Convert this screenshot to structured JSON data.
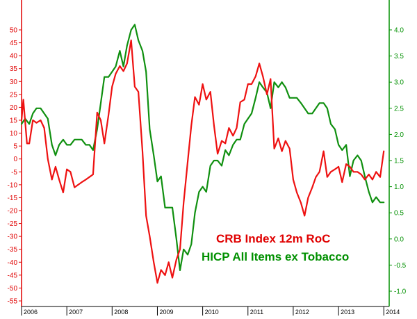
{
  "chart_data": {
    "type": "line",
    "title": "",
    "xlabel": "",
    "ylabel": "",
    "x_tick_labels": [
      "2006",
      "2007",
      "2008",
      "2009",
      "2010",
      "2011",
      "2012",
      "2013",
      "2014"
    ],
    "x_range": [
      2006.0,
      2014.15
    ],
    "y_left": {
      "ylim": [
        -55,
        50
      ],
      "ticks": [
        50,
        45,
        40,
        35,
        30,
        25,
        20,
        15,
        10,
        5,
        0,
        -5,
        -10,
        -15,
        -20,
        -25,
        -30,
        -35,
        -40,
        -45,
        -50,
        -55
      ],
      "color": "#e00000"
    },
    "y_right": {
      "ylim": [
        -1.0,
        4.0
      ],
      "ticks": [
        "4.0",
        "3.5",
        "3.0",
        "2.5",
        "2.0",
        "1.5",
        "1.0",
        "0.5",
        "0.0",
        "-0.5",
        "-1.0"
      ],
      "color": "#009000"
    },
    "grid": false,
    "legend_position": "bottom-right",
    "series": [
      {
        "name": "CRB Index 12m RoC",
        "axis": "left",
        "color": "#ee1111",
        "points": [
          [
            2006.0,
            15
          ],
          [
            2006.04,
            23
          ],
          [
            2006.12,
            6
          ],
          [
            2006.17,
            6
          ],
          [
            2006.25,
            15
          ],
          [
            2006.33,
            14
          ],
          [
            2006.42,
            15
          ],
          [
            2006.5,
            12
          ],
          [
            2006.58,
            0
          ],
          [
            2006.67,
            -8
          ],
          [
            2006.75,
            -3
          ],
          [
            2006.83,
            -8
          ],
          [
            2006.92,
            -13
          ],
          [
            2007.0,
            -4
          ],
          [
            2007.08,
            -5
          ],
          [
            2007.17,
            -11
          ],
          [
            2007.25,
            -10
          ],
          [
            2007.33,
            -9
          ],
          [
            2007.42,
            -8
          ],
          [
            2007.5,
            -7
          ],
          [
            2007.58,
            -6
          ],
          [
            2007.67,
            18
          ],
          [
            2007.75,
            15
          ],
          [
            2007.83,
            6
          ],
          [
            2007.92,
            17
          ],
          [
            2008.0,
            28
          ],
          [
            2008.08,
            33
          ],
          [
            2008.17,
            36
          ],
          [
            2008.25,
            34
          ],
          [
            2008.33,
            37
          ],
          [
            2008.42,
            46
          ],
          [
            2008.5,
            28
          ],
          [
            2008.58,
            26
          ],
          [
            2008.67,
            3
          ],
          [
            2008.75,
            -22
          ],
          [
            2008.83,
            -30
          ],
          [
            2008.92,
            -40
          ],
          [
            2009.0,
            -48
          ],
          [
            2009.08,
            -43
          ],
          [
            2009.17,
            -45
          ],
          [
            2009.25,
            -40
          ],
          [
            2009.33,
            -46
          ],
          [
            2009.42,
            -39
          ],
          [
            2009.5,
            -35
          ],
          [
            2009.58,
            -17
          ],
          [
            2009.67,
            -1
          ],
          [
            2009.75,
            13
          ],
          [
            2009.83,
            24
          ],
          [
            2009.92,
            21
          ],
          [
            2010.0,
            29
          ],
          [
            2010.08,
            23
          ],
          [
            2010.17,
            26
          ],
          [
            2010.25,
            13
          ],
          [
            2010.33,
            2
          ],
          [
            2010.42,
            7
          ],
          [
            2010.5,
            6
          ],
          [
            2010.58,
            12
          ],
          [
            2010.67,
            9
          ],
          [
            2010.75,
            12
          ],
          [
            2010.83,
            22
          ],
          [
            2010.92,
            23
          ],
          [
            2011.0,
            29
          ],
          [
            2011.08,
            29
          ],
          [
            2011.17,
            32
          ],
          [
            2011.25,
            37
          ],
          [
            2011.33,
            32
          ],
          [
            2011.42,
            25
          ],
          [
            2011.5,
            31
          ],
          [
            2011.58,
            4
          ],
          [
            2011.67,
            8
          ],
          [
            2011.75,
            3
          ],
          [
            2011.83,
            7
          ],
          [
            2011.92,
            4
          ],
          [
            2012.0,
            -8
          ],
          [
            2012.08,
            -13
          ],
          [
            2012.17,
            -17
          ],
          [
            2012.25,
            -22
          ],
          [
            2012.33,
            -15
          ],
          [
            2012.42,
            -11
          ],
          [
            2012.5,
            -7
          ],
          [
            2012.58,
            -5
          ],
          [
            2012.67,
            3
          ],
          [
            2012.75,
            -7
          ],
          [
            2012.83,
            -5
          ],
          [
            2012.92,
            -4
          ],
          [
            2013.0,
            -3
          ],
          [
            2013.08,
            -9
          ],
          [
            2013.17,
            -2
          ],
          [
            2013.25,
            -3
          ],
          [
            2013.33,
            -5
          ],
          [
            2013.42,
            -5
          ],
          [
            2013.5,
            -6
          ],
          [
            2013.58,
            -8
          ],
          [
            2013.67,
            -6
          ],
          [
            2013.75,
            -8
          ],
          [
            2013.83,
            -5
          ],
          [
            2013.92,
            -7
          ],
          [
            2014.0,
            3
          ]
        ]
      },
      {
        "name": "HICP All Items ex Tobacco",
        "axis": "right",
        "color": "#109010",
        "points": [
          [
            2006.0,
            2.2
          ],
          [
            2006.08,
            2.3
          ],
          [
            2006.17,
            2.2
          ],
          [
            2006.25,
            2.4
          ],
          [
            2006.33,
            2.5
          ],
          [
            2006.42,
            2.5
          ],
          [
            2006.5,
            2.4
          ],
          [
            2006.58,
            2.3
          ],
          [
            2006.67,
            1.8
          ],
          [
            2006.75,
            1.6
          ],
          [
            2006.83,
            1.8
          ],
          [
            2006.92,
            1.9
          ],
          [
            2007.0,
            1.8
          ],
          [
            2007.08,
            1.8
          ],
          [
            2007.17,
            1.9
          ],
          [
            2007.25,
            1.9
          ],
          [
            2007.33,
            1.9
          ],
          [
            2007.42,
            1.8
          ],
          [
            2007.5,
            1.8
          ],
          [
            2007.58,
            1.7
          ],
          [
            2007.67,
            2.1
          ],
          [
            2007.75,
            2.6
          ],
          [
            2007.83,
            3.1
          ],
          [
            2007.92,
            3.1
          ],
          [
            2008.0,
            3.2
          ],
          [
            2008.08,
            3.3
          ],
          [
            2008.17,
            3.6
          ],
          [
            2008.25,
            3.3
          ],
          [
            2008.33,
            3.7
          ],
          [
            2008.42,
            4.0
          ],
          [
            2008.5,
            4.1
          ],
          [
            2008.58,
            3.8
          ],
          [
            2008.67,
            3.6
          ],
          [
            2008.75,
            3.2
          ],
          [
            2008.83,
            2.1
          ],
          [
            2008.92,
            1.6
          ],
          [
            2009.0,
            1.1
          ],
          [
            2009.08,
            1.2
          ],
          [
            2009.17,
            0.6
          ],
          [
            2009.25,
            0.6
          ],
          [
            2009.33,
            0.6
          ],
          [
            2009.42,
            0.0
          ],
          [
            2009.5,
            -0.6
          ],
          [
            2009.58,
            -0.2
          ],
          [
            2009.67,
            -0.3
          ],
          [
            2009.75,
            -0.1
          ],
          [
            2009.83,
            0.5
          ],
          [
            2009.92,
            0.9
          ],
          [
            2010.0,
            1.0
          ],
          [
            2010.08,
            0.9
          ],
          [
            2010.17,
            1.4
          ],
          [
            2010.25,
            1.5
          ],
          [
            2010.33,
            1.5
          ],
          [
            2010.42,
            1.4
          ],
          [
            2010.5,
            1.7
          ],
          [
            2010.58,
            1.6
          ],
          [
            2010.67,
            1.8
          ],
          [
            2010.75,
            1.9
          ],
          [
            2010.83,
            1.9
          ],
          [
            2010.92,
            2.2
          ],
          [
            2011.0,
            2.3
          ],
          [
            2011.08,
            2.4
          ],
          [
            2011.17,
            2.7
          ],
          [
            2011.25,
            3.0
          ],
          [
            2011.33,
            2.9
          ],
          [
            2011.42,
            2.8
          ],
          [
            2011.5,
            2.5
          ],
          [
            2011.58,
            3.0
          ],
          [
            2011.67,
            2.9
          ],
          [
            2011.75,
            3.0
          ],
          [
            2011.83,
            2.9
          ],
          [
            2011.92,
            2.7
          ],
          [
            2012.0,
            2.7
          ],
          [
            2012.08,
            2.7
          ],
          [
            2012.17,
            2.6
          ],
          [
            2012.25,
            2.5
          ],
          [
            2012.33,
            2.4
          ],
          [
            2012.42,
            2.4
          ],
          [
            2012.5,
            2.5
          ],
          [
            2012.58,
            2.6
          ],
          [
            2012.67,
            2.6
          ],
          [
            2012.75,
            2.5
          ],
          [
            2012.83,
            2.2
          ],
          [
            2012.92,
            2.1
          ],
          [
            2013.0,
            1.8
          ],
          [
            2013.08,
            1.7
          ],
          [
            2013.17,
            1.8
          ],
          [
            2013.25,
            1.2
          ],
          [
            2013.33,
            1.5
          ],
          [
            2013.42,
            1.6
          ],
          [
            2013.5,
            1.5
          ],
          [
            2013.58,
            1.2
          ],
          [
            2013.67,
            0.9
          ],
          [
            2013.75,
            0.7
          ],
          [
            2013.83,
            0.8
          ],
          [
            2013.92,
            0.7
          ],
          [
            2014.0,
            0.7
          ]
        ]
      }
    ]
  },
  "legend": {
    "crb_label": "CRB Index 12m RoC",
    "hicp_label": "HICP All Items ex Tobacco"
  }
}
